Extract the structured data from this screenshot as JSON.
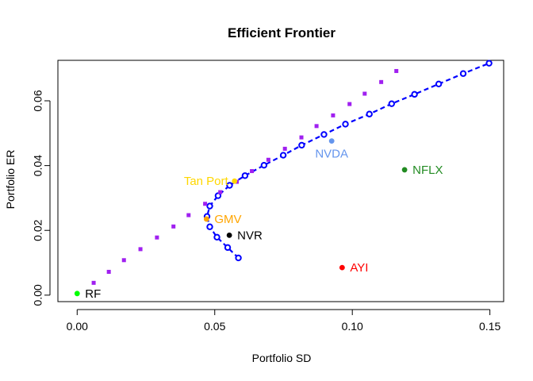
{
  "chart_data": {
    "type": "scatter",
    "title": "Efficient Frontier",
    "xlabel": "Portfolio SD",
    "ylabel": "Portfolio ER",
    "xlim": [
      -0.007,
      0.155
    ],
    "ylim": [
      -0.002,
      0.0725
    ],
    "x_ticks": [
      0.0,
      0.05,
      0.1,
      0.15
    ],
    "x_tick_labels": [
      "0.00",
      "0.05",
      "0.10",
      "0.15"
    ],
    "y_ticks": [
      0.0,
      0.02,
      0.04,
      0.06
    ],
    "y_tick_labels": [
      "0.00",
      "0.02",
      "0.04",
      "0.06"
    ],
    "grid": false,
    "series": [
      {
        "style": "dashed-line-with-open-circles",
        "color": "#0000ff",
        "points": [
          [
            0.0586,
            0.0115
          ],
          [
            0.0547,
            0.0147
          ],
          [
            0.0508,
            0.0179
          ],
          [
            0.0482,
            0.0211
          ],
          [
            0.0472,
            0.0243
          ],
          [
            0.0482,
            0.0275
          ],
          [
            0.0512,
            0.0307
          ],
          [
            0.0554,
            0.0339
          ],
          [
            0.061,
            0.0369
          ],
          [
            0.0679,
            0.0401
          ],
          [
            0.0749,
            0.0432
          ],
          [
            0.0816,
            0.0463
          ],
          [
            0.0897,
            0.0496
          ],
          [
            0.0975,
            0.0528
          ],
          [
            0.1062,
            0.0559
          ],
          [
            0.1143,
            0.0591
          ],
          [
            0.1226,
            0.062
          ],
          [
            0.1314,
            0.0652
          ],
          [
            0.1403,
            0.0684
          ],
          [
            0.1497,
            0.0716
          ]
        ]
      },
      {
        "style": "filled-squares",
        "color": "#a020f0",
        "points": [
          [
            0.006,
            0.0038
          ],
          [
            0.0115,
            0.0072
          ],
          [
            0.017,
            0.0108
          ],
          [
            0.023,
            0.0142
          ],
          [
            0.029,
            0.0178
          ],
          [
            0.035,
            0.0212
          ],
          [
            0.0405,
            0.0247
          ],
          [
            0.0465,
            0.0282
          ],
          [
            0.052,
            0.0318
          ],
          [
            0.058,
            0.035
          ],
          [
            0.0635,
            0.0383
          ],
          [
            0.0695,
            0.0418
          ],
          [
            0.0755,
            0.0452
          ],
          [
            0.0815,
            0.0487
          ],
          [
            0.087,
            0.0522
          ],
          [
            0.093,
            0.0555
          ],
          [
            0.099,
            0.059
          ],
          [
            0.1045,
            0.0622
          ],
          [
            0.1105,
            0.0658
          ],
          [
            0.116,
            0.0692
          ]
        ]
      }
    ],
    "labeled_points": [
      {
        "label": "RF",
        "x": 0.0,
        "y": 0.0005,
        "color": "#00ff00",
        "label_color": "#000000",
        "label_pos": "right"
      },
      {
        "label": "GMV",
        "x": 0.047,
        "y": 0.0235,
        "color": "#ffa500",
        "label_color": "#ffa500",
        "label_pos": "right"
      },
      {
        "label": "NVR",
        "x": 0.0553,
        "y": 0.0185,
        "color": "#000000",
        "label_color": "#000000",
        "label_pos": "right"
      },
      {
        "label": "AYI",
        "x": 0.0963,
        "y": 0.0085,
        "color": "#ff0000",
        "label_color": "#ff0000",
        "label_pos": "right"
      },
      {
        "label": "NVDA",
        "x": 0.0925,
        "y": 0.0476,
        "color": "#6495ed",
        "label_color": "#6495ed",
        "label_pos": "below"
      },
      {
        "label": "NFLX",
        "x": 0.119,
        "y": 0.0387,
        "color": "#228b22",
        "label_color": "#228b22",
        "label_pos": "right"
      },
      {
        "label": "Tan Port",
        "x": 0.0572,
        "y": 0.0352,
        "color": "#ffd700",
        "label_color": "#ffd700",
        "label_pos": "left"
      }
    ]
  }
}
